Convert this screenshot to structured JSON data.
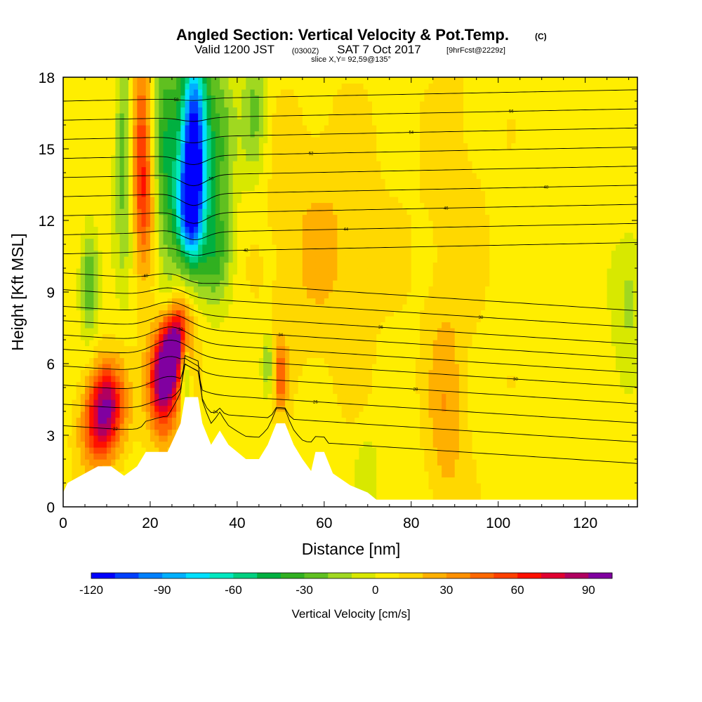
{
  "title": {
    "main": "Angled Section: Vertical Velocity & Pot.Temp.",
    "copyright": "(C)",
    "valid_prefix": "Valid 1200 JST",
    "valid_utc": "(0300Z)",
    "valid_date": "SAT 7 Oct 2017",
    "forecast": "[9hrFcst@2229z]",
    "slice": "slice X,Y= 92,59@135°"
  },
  "chart_data": {
    "type": "heatmap",
    "title": "Angled Section: Vertical Velocity & Pot.Temp.",
    "xlabel": "Distance [nm]",
    "ylabel": "Height [Kft MSL]",
    "xlim": [
      0,
      132
    ],
    "ylim": [
      0,
      18
    ],
    "x_ticks": [
      0,
      20,
      40,
      60,
      80,
      100,
      120
    ],
    "x_tick_labels": [
      "0",
      "20",
      "40",
      "60",
      "80",
      "100",
      "120"
    ],
    "y_ticks": [
      0,
      3,
      6,
      9,
      12,
      15,
      18
    ],
    "y_tick_labels": [
      "0",
      "3",
      "6",
      "9",
      "12",
      "15",
      "18"
    ],
    "colorbar": {
      "label": "Vertical Velocity [cm/s]",
      "min": -120,
      "max": 100,
      "tick_values": [
        -120,
        -90,
        -60,
        -30,
        0,
        30,
        60,
        90
      ],
      "tick_labels": [
        "-120",
        "-90",
        "-60",
        "-30",
        "0",
        "30",
        "60",
        "90"
      ],
      "colors": [
        "#0000ff",
        "#0040ff",
        "#0080ff",
        "#00b0ff",
        "#00e0ff",
        "#00e8c0",
        "#00d080",
        "#00b040",
        "#30b020",
        "#60c020",
        "#a0d820",
        "#d8e800",
        "#ffee00",
        "#ffd800",
        "#ffb000",
        "#ff9000",
        "#ff6800",
        "#ff4000",
        "#ff1000",
        "#e00030",
        "#b00060",
        "#8000a0"
      ]
    },
    "terrain_kft": [
      [
        0,
        0.6
      ],
      [
        1,
        1.0
      ],
      [
        5,
        1.4
      ],
      [
        8,
        1.7
      ],
      [
        11,
        1.7
      ],
      [
        14,
        1.3
      ],
      [
        17,
        1.7
      ],
      [
        19,
        2.3
      ],
      [
        24,
        2.3
      ],
      [
        27,
        3.5
      ],
      [
        28,
        4.6
      ],
      [
        31,
        4.6
      ],
      [
        32,
        3.5
      ],
      [
        34,
        2.6
      ],
      [
        36,
        3.2
      ],
      [
        38,
        2.6
      ],
      [
        40,
        2.3
      ],
      [
        42,
        2.0
      ],
      [
        45,
        2.0
      ],
      [
        47,
        2.6
      ],
      [
        49,
        3.5
      ],
      [
        51,
        3.5
      ],
      [
        53,
        2.6
      ],
      [
        55,
        2.0
      ],
      [
        57,
        1.5
      ],
      [
        58,
        2.3
      ],
      [
        60,
        2.3
      ],
      [
        62,
        1.4
      ],
      [
        66,
        0.9
      ],
      [
        70,
        0.6
      ],
      [
        72,
        0.3
      ],
      [
        132,
        0.3
      ]
    ],
    "theta_levels": [
      {
        "label": "22",
        "base_kft": 3.4
      },
      {
        "label": "24",
        "base_kft": 4.3
      },
      {
        "label": "26",
        "base_kft": 5.1
      },
      {
        "label": "28",
        "base_kft": 5.9
      },
      {
        "label": "30",
        "base_kft": 6.6
      },
      {
        "label": "32",
        "base_kft": 7.2
      },
      {
        "label": "34",
        "base_kft": 7.8
      },
      {
        "label": "36",
        "base_kft": 8.4
      },
      {
        "label": "38",
        "base_kft": 9.1
      },
      {
        "label": "40",
        "base_kft": 9.8
      },
      {
        "label": "42",
        "base_kft": 10.6
      },
      {
        "label": "44",
        "base_kft": 11.4
      },
      {
        "label": "46",
        "base_kft": 12.2
      },
      {
        "label": "48",
        "base_kft": 13.0
      },
      {
        "label": "50",
        "base_kft": 13.8
      },
      {
        "label": "52",
        "base_kft": 14.6
      },
      {
        "label": "54",
        "base_kft": 15.4
      },
      {
        "label": "56",
        "base_kft": 16.2
      },
      {
        "label": "58",
        "base_kft": 17.0
      }
    ],
    "velocity_cells": [
      {
        "x": 10,
        "z": 4.4,
        "w": 70,
        "sx": 3,
        "sz": 1.2
      },
      {
        "x": 8,
        "z": 3.0,
        "w": 40,
        "sx": 3,
        "sz": 1.2
      },
      {
        "x": 18,
        "z": 15.5,
        "w": 45,
        "sx": 1.6,
        "sz": 3
      },
      {
        "x": 19,
        "z": 12.5,
        "w": 30,
        "sx": 1.8,
        "sz": 2
      },
      {
        "x": 23,
        "z": 5.2,
        "w": 95,
        "sx": 2.5,
        "sz": 1.5
      },
      {
        "x": 25,
        "z": 6.5,
        "w": 60,
        "sx": 2,
        "sz": 1
      },
      {
        "x": 27,
        "z": 7.5,
        "w": 45,
        "sx": 2,
        "sz": 1
      },
      {
        "x": 30,
        "z": 15.5,
        "w": -120,
        "sx": 2,
        "sz": 2.5
      },
      {
        "x": 29,
        "z": 12.5,
        "w": -90,
        "sx": 2,
        "sz": 1.5
      },
      {
        "x": 24,
        "z": 14.5,
        "w": -45,
        "sx": 2.5,
        "sz": 4
      },
      {
        "x": 35,
        "z": 15.0,
        "w": -40,
        "sx": 3,
        "sz": 3
      },
      {
        "x": 35,
        "z": 10.5,
        "w": -30,
        "sx": 3,
        "sz": 1.5
      },
      {
        "x": 14,
        "z": 15.0,
        "w": -35,
        "sx": 1.5,
        "sz": 3.5
      },
      {
        "x": 6,
        "z": 9.5,
        "w": -40,
        "sx": 1.5,
        "sz": 1.5
      },
      {
        "x": 44,
        "z": 16.5,
        "w": -30,
        "sx": 2,
        "sz": 2
      },
      {
        "x": 28,
        "z": 5.5,
        "w": -40,
        "sx": 0.8,
        "sz": 1.2
      },
      {
        "x": 47,
        "z": 6.0,
        "w": -30,
        "sx": 1,
        "sz": 1
      },
      {
        "x": 50,
        "z": 5.5,
        "w": 40,
        "sx": 1,
        "sz": 1
      },
      {
        "x": 88,
        "z": 3.5,
        "w": 20,
        "sx": 3,
        "sz": 3
      },
      {
        "x": 90,
        "z": 12.0,
        "w": 10,
        "sx": 5,
        "sz": 5
      },
      {
        "x": 60,
        "z": 11.0,
        "w": 15,
        "sx": 10,
        "sz": 4
      },
      {
        "x": 130,
        "z": 9.0,
        "w": -20,
        "sx": 3,
        "sz": 2
      },
      {
        "x": 70,
        "z": 1.5,
        "w": -15,
        "sx": 2,
        "sz": 1
      }
    ]
  }
}
